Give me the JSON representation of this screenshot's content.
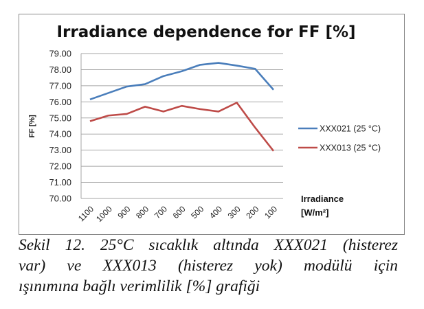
{
  "chart_data": {
    "type": "line",
    "title": "Irradiance dependence for FF [%]",
    "ylabel": "FF [%]",
    "xlabel": "Irradiance [W/m²]",
    "xlabel_lines": [
      "Irradiance",
      "[W/m²]"
    ],
    "categories": [
      "1100",
      "1000",
      "900",
      "800",
      "700",
      "600",
      "500",
      "400",
      "300",
      "200",
      "100"
    ],
    "ylim": [
      70,
      79
    ],
    "yticks": [
      "70.00",
      "71.00",
      "72.00",
      "73.00",
      "74.00",
      "75.00",
      "76.00",
      "77.00",
      "78.00",
      "79.00"
    ],
    "grid": true,
    "legend": "right",
    "series": [
      {
        "name": "XXX021 (25 °C)",
        "color": "#4a7ebb",
        "values": [
          76.15,
          76.55,
          76.95,
          77.1,
          77.6,
          77.9,
          78.3,
          78.42,
          78.25,
          78.05,
          76.75
        ]
      },
      {
        "name": "XXX013 (25 °C)",
        "color": "#be4b48",
        "values": [
          74.8,
          75.15,
          75.25,
          75.7,
          75.4,
          75.75,
          75.55,
          75.4,
          75.95,
          74.4,
          72.95
        ]
      }
    ]
  },
  "caption": [
    "Sekil 12. 25°C sıcaklık altında XXX021 (histerez",
    "var) ve XXX013 (histerez yok) modülü için",
    "ışınımına bağlı verimlilik [%] grafiği"
  ]
}
